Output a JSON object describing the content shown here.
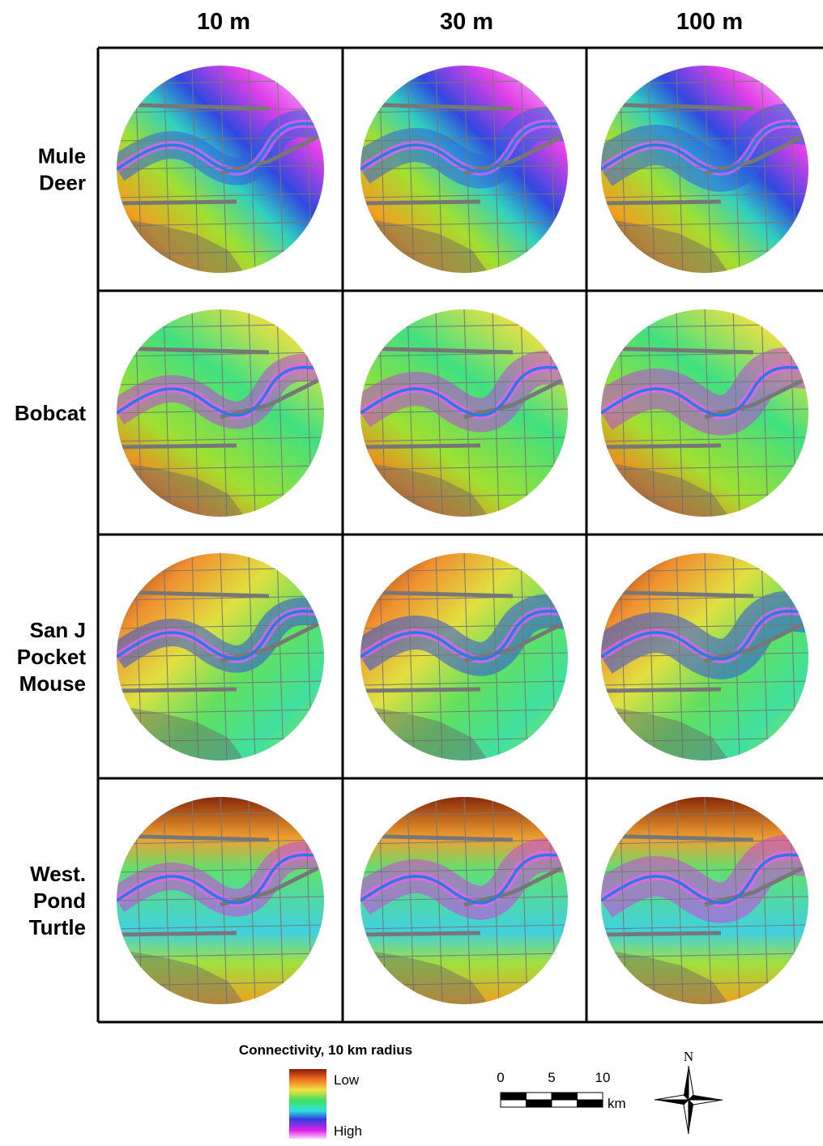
{
  "column_headers": [
    "10 m",
    "30 m",
    "100 m"
  ],
  "row_labels": [
    [
      "Mule",
      "Deer"
    ],
    [
      "Bobcat"
    ],
    [
      "San J",
      "Pocket",
      "Mouse"
    ],
    [
      "West.",
      "Pond",
      "Turtle"
    ]
  ],
  "legend": {
    "title": "Connectivity, 10 km radius",
    "low": "Low",
    "high": "High"
  },
  "scale_bar": {
    "ticks": [
      0,
      5,
      10
    ],
    "unit": "km"
  },
  "north_arrow": "N"
}
